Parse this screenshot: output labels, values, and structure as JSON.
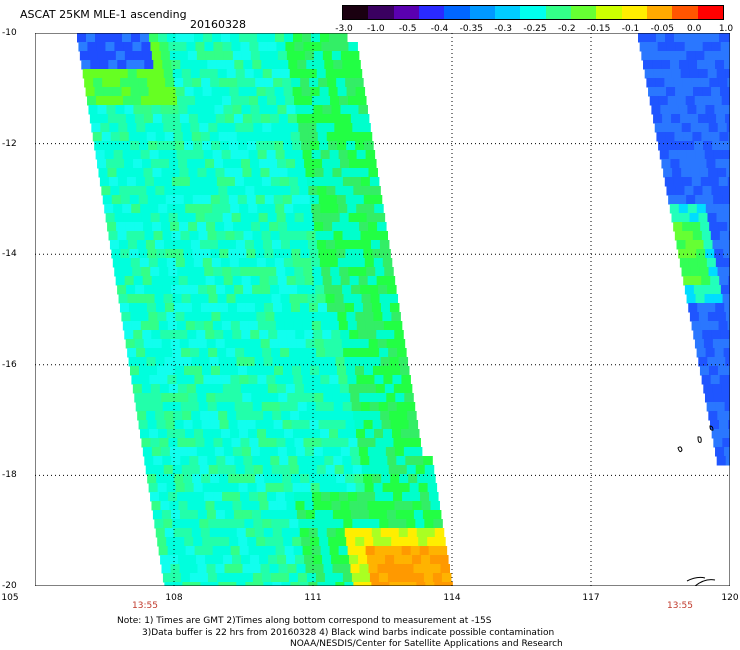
{
  "title": "ASCAT 25KM MLE-1 ascending",
  "date": "20160328",
  "colorbar": {
    "labels": [
      "-3.0",
      "-1.0",
      "-0.5",
      "-0.4",
      "-0.35",
      "-0.3",
      "-0.25",
      "-0.2",
      "-0.15",
      "-0.1",
      "-0.05",
      "0.0",
      "1.0"
    ],
    "colors": [
      "#1a0010",
      "#3a0060",
      "#5a00b0",
      "#2a2aff",
      "#0066ff",
      "#0099ff",
      "#00ccff",
      "#00ffee",
      "#33ff88",
      "#66ff33",
      "#ccff00",
      "#ffee00",
      "#ffaa00",
      "#ff5500",
      "#ff0000"
    ]
  },
  "axes": {
    "y_ticks": [
      "-10",
      "-12",
      "-14",
      "-16",
      "-18",
      "-20"
    ],
    "x_ticks": [
      "105",
      "108",
      "111",
      "114",
      "117",
      "120"
    ],
    "times": [
      "13:55",
      "13:55"
    ]
  },
  "notes": {
    "line1": "Note: 1) Times are GMT 2)Times along bottom correspond to measurement at -15S",
    "line2": "3)Data buffer is 22 hrs from 20160328 4) Black wind barbs indicate possible contamination",
    "line3": "NOAA/NESDIS/Center for Satellite Applications and Research"
  }
}
